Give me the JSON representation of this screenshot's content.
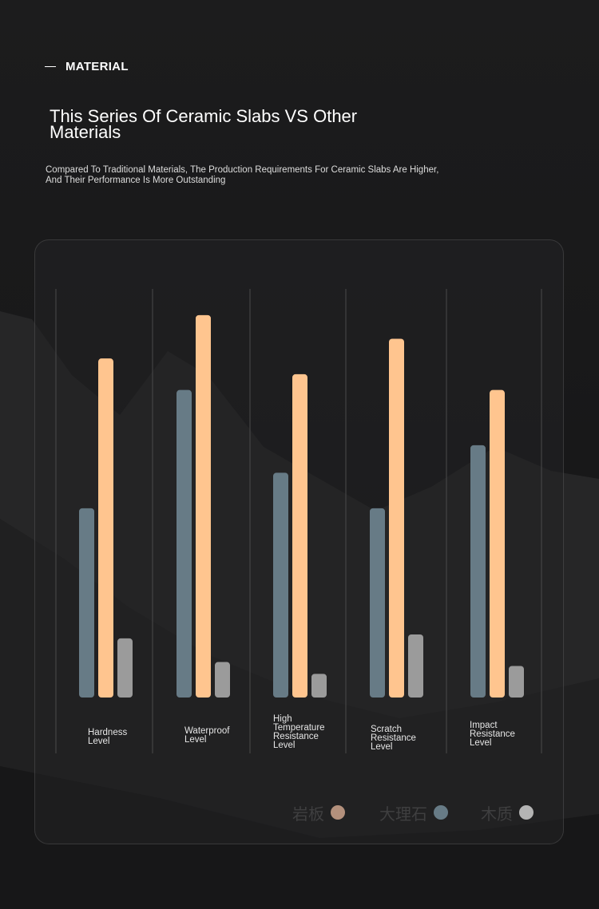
{
  "header": {
    "section_tag": "MATERIAL",
    "title_line1": "This Series Of Ceramic Slabs VS Other",
    "title_line2": "Materials",
    "subtitle_line1": "Compared To Traditional Materials, The Production Requirements For Ceramic Slabs Are Higher,",
    "subtitle_line2": "And Their Performance Is More Outstanding"
  },
  "colors": {
    "background": "#1b1b1c",
    "slab": "#ffc58f",
    "marble": "#677b86",
    "wood": "#9b9b9b",
    "legend_text": "#3f3f40"
  },
  "chart_data": {
    "type": "bar",
    "categories": [
      [
        "Hardness",
        "Level"
      ],
      [
        "Waterproof",
        "Level"
      ],
      [
        "High",
        "Temperature",
        "Resistance",
        "Level"
      ],
      [
        "Scratch",
        "Resistance",
        "Level"
      ],
      [
        "Impact",
        "Resistance",
        "Level"
      ]
    ],
    "series": [
      {
        "name": "大理石",
        "color": "#677b86",
        "values": [
          48,
          78,
          57,
          48,
          64
        ]
      },
      {
        "name": "岩板",
        "color": "#ffc58f",
        "values": [
          86,
          97,
          82,
          91,
          78
        ]
      },
      {
        "name": "木质",
        "color": "#9b9b9b",
        "values": [
          15,
          9,
          6,
          16,
          8
        ]
      }
    ],
    "legend_order": [
      "岩板",
      "大理石",
      "木质"
    ],
    "legend_colors": [
      "#b3907c",
      "#677b86",
      "#b4b4b4"
    ],
    "legend_placement": "bottom-right",
    "ylim": [
      0,
      100
    ],
    "grid": "vertical separators"
  }
}
